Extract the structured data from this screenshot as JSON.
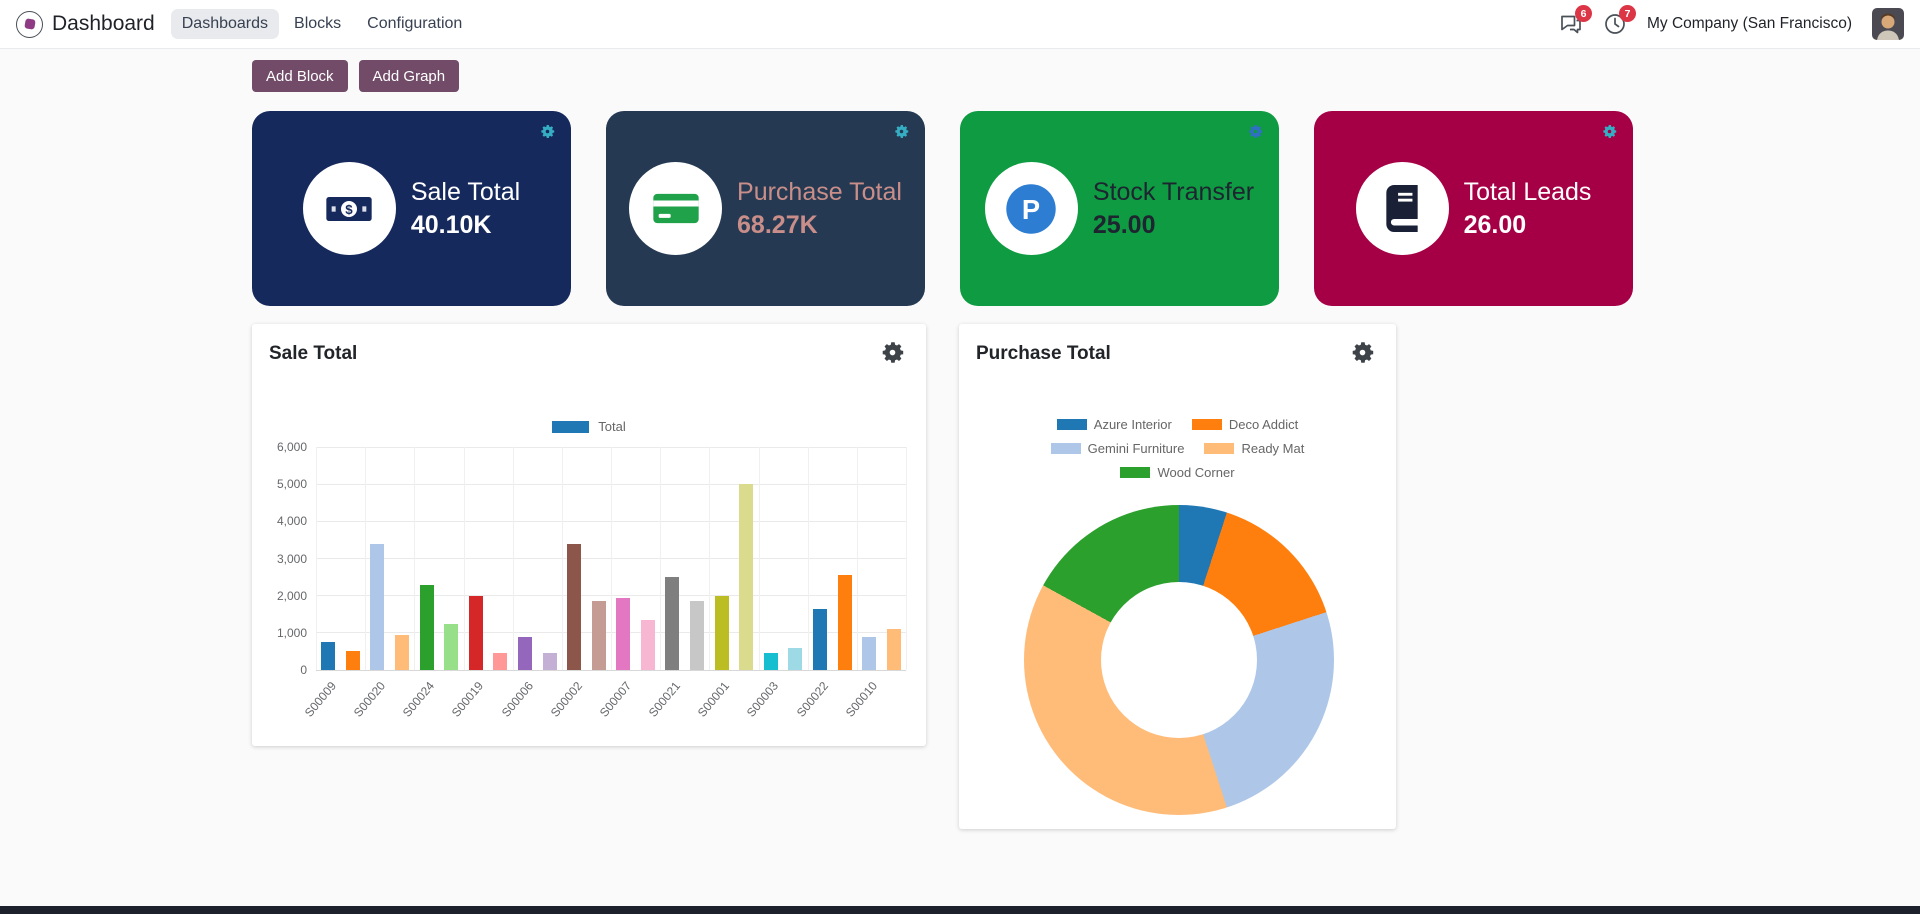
{
  "navbar": {
    "app_title": "Dashboard",
    "menu": [
      {
        "label": "Dashboards",
        "active": true
      },
      {
        "label": "Blocks",
        "active": false
      },
      {
        "label": "Configuration",
        "active": false
      }
    ],
    "messages_badge": "6",
    "activities_badge": "7",
    "company_name": "My Company (San Francisco)"
  },
  "toolbar": {
    "add_block_label": "Add Block",
    "add_graph_label": "Add Graph"
  },
  "kpi_cards": [
    {
      "title": "Sale Total",
      "value": "40.10K",
      "bg": "#16295C",
      "text_color": "#FFFFFF",
      "icon": "money-bill-icon",
      "gear_color": "#35AEC3"
    },
    {
      "title": "Purchase Total",
      "value": "68.27K",
      "bg": "#253A52",
      "text_color": "#C98E89",
      "icon": "credit-card-icon",
      "gear_color": "#35AEC3"
    },
    {
      "title": "Stock Transfer",
      "value": "25.00",
      "bg": "#0E9B41",
      "text_color": "#1E2430",
      "icon": "product-icon",
      "gear_color": "#2F6FC4"
    },
    {
      "title": "Total Leads",
      "value": "26.00",
      "bg": "#A50045",
      "text_color": "#FFFFFF",
      "icon": "book-icon",
      "gear_color": "#35AEC3"
    }
  ],
  "chart_data": [
    {
      "type": "bar",
      "title": "Sale Total",
      "legend": [
        {
          "label": "Total",
          "color": "#1f77b4"
        }
      ],
      "ylim": [
        0,
        6000
      ],
      "ytick_step": 1000,
      "yticks": [
        "0",
        "1,000",
        "2,000",
        "3,000",
        "4,000",
        "5,000",
        "6,000"
      ],
      "grid": true,
      "label_every": 2,
      "xlabels": [
        "S00009",
        "S00020",
        "S00024",
        "S00019",
        "S00006",
        "S00002",
        "S00007",
        "S00021",
        "S00001",
        "S00003",
        "S00022",
        "S00010"
      ],
      "bars": [
        {
          "value": 750,
          "color": "#1f77b4"
        },
        {
          "value": 500,
          "color": "#ff7f0e"
        },
        {
          "value": 3400,
          "color": "#aec7e8"
        },
        {
          "value": 950,
          "color": "#ffbb78"
        },
        {
          "value": 2300,
          "color": "#2ca02c"
        },
        {
          "value": 1250,
          "color": "#98df8a"
        },
        {
          "value": 2000,
          "color": "#d62728"
        },
        {
          "value": 450,
          "color": "#ff9896"
        },
        {
          "value": 900,
          "color": "#9467bd"
        },
        {
          "value": 450,
          "color": "#c5b0d5"
        },
        {
          "value": 3400,
          "color": "#8c564b"
        },
        {
          "value": 1850,
          "color": "#c49c94"
        },
        {
          "value": 1950,
          "color": "#e377c2"
        },
        {
          "value": 1350,
          "color": "#f7b6d2"
        },
        {
          "value": 2500,
          "color": "#7f7f7f"
        },
        {
          "value": 1850,
          "color": "#c7c7c7"
        },
        {
          "value": 2000,
          "color": "#bcbd22"
        },
        {
          "value": 5000,
          "color": "#dbdb8d"
        },
        {
          "value": 450,
          "color": "#17becf"
        },
        {
          "value": 600,
          "color": "#9edae5"
        },
        {
          "value": 1650,
          "color": "#1f77b4"
        },
        {
          "value": 2550,
          "color": "#ff7f0e"
        },
        {
          "value": 900,
          "color": "#aec7e8"
        },
        {
          "value": 1100,
          "color": "#ffbb78"
        }
      ]
    },
    {
      "type": "pie",
      "title": "Purchase Total",
      "donut": true,
      "legend_position": "top",
      "slices": [
        {
          "label": "Azure Interior",
          "value": 5,
          "color": "#1f77b4"
        },
        {
          "label": "Deco Addict",
          "value": 15,
          "color": "#ff7f0e"
        },
        {
          "label": "Gemini Furniture",
          "value": 25,
          "color": "#aec7e8"
        },
        {
          "label": "Ready Mat",
          "value": 38,
          "color": "#ffbb78"
        },
        {
          "label": "Wood Corner",
          "value": 17,
          "color": "#2ca02c"
        }
      ]
    }
  ],
  "colors": {
    "primary_button": "#714B67",
    "badge": "#dc3545",
    "page_bg": "#fafafa"
  }
}
